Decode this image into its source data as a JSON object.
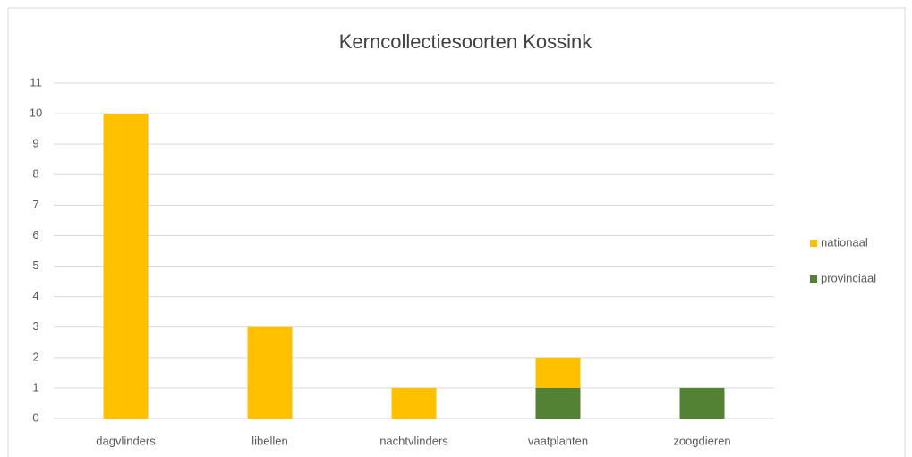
{
  "chart_data": {
    "type": "stacked_bar",
    "title": "Kerncollectiesoorten Kossink",
    "categories": [
      "dagvlinders",
      "libellen",
      "nachtvlinders",
      "vaatplanten",
      "zoogdieren"
    ],
    "series": [
      {
        "name": "nationaal",
        "color": "#ffc000",
        "values": [
          10,
          3,
          1,
          1,
          0
        ]
      },
      {
        "name": "provinciaal",
        "color": "#548235",
        "values": [
          0,
          0,
          0,
          1,
          1
        ]
      }
    ],
    "ylim": [
      0,
      11
    ],
    "yticks": [
      0,
      1,
      2,
      3,
      4,
      5,
      6,
      7,
      8,
      9,
      10,
      11
    ],
    "grid": true,
    "legend": "right"
  }
}
